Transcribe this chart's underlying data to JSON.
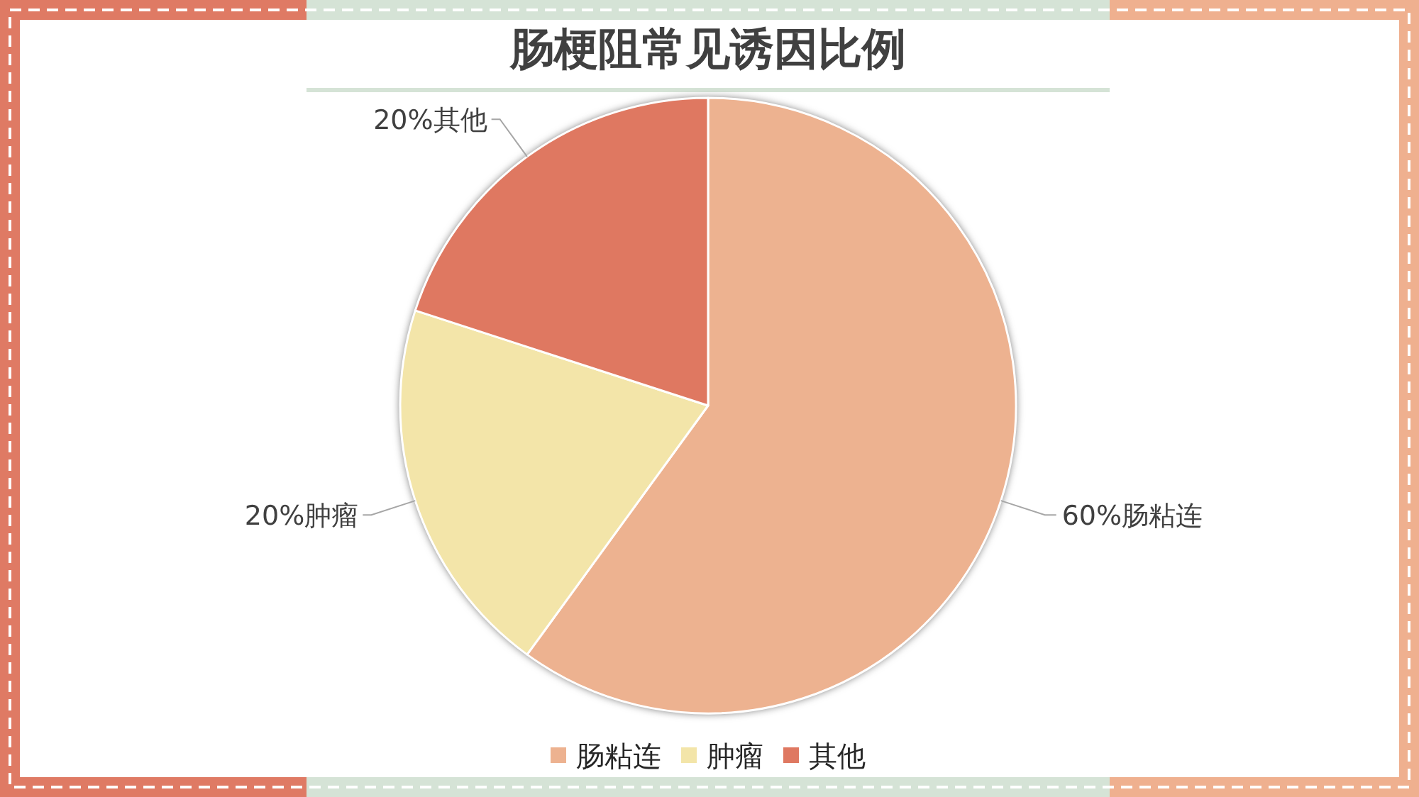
{
  "chart_data": {
    "type": "pie",
    "title": "肠梗阻常见诱因比例",
    "categories": [
      "肠粘连",
      "肿瘤",
      "其他"
    ],
    "values": [
      60,
      20,
      20
    ],
    "colors": [
      "#edb290",
      "#f3e5a9",
      "#df7861"
    ],
    "value_labels": [
      "60%肠粘连",
      "20%肿瘤",
      "20%其他"
    ],
    "legend": "bottom"
  }
}
